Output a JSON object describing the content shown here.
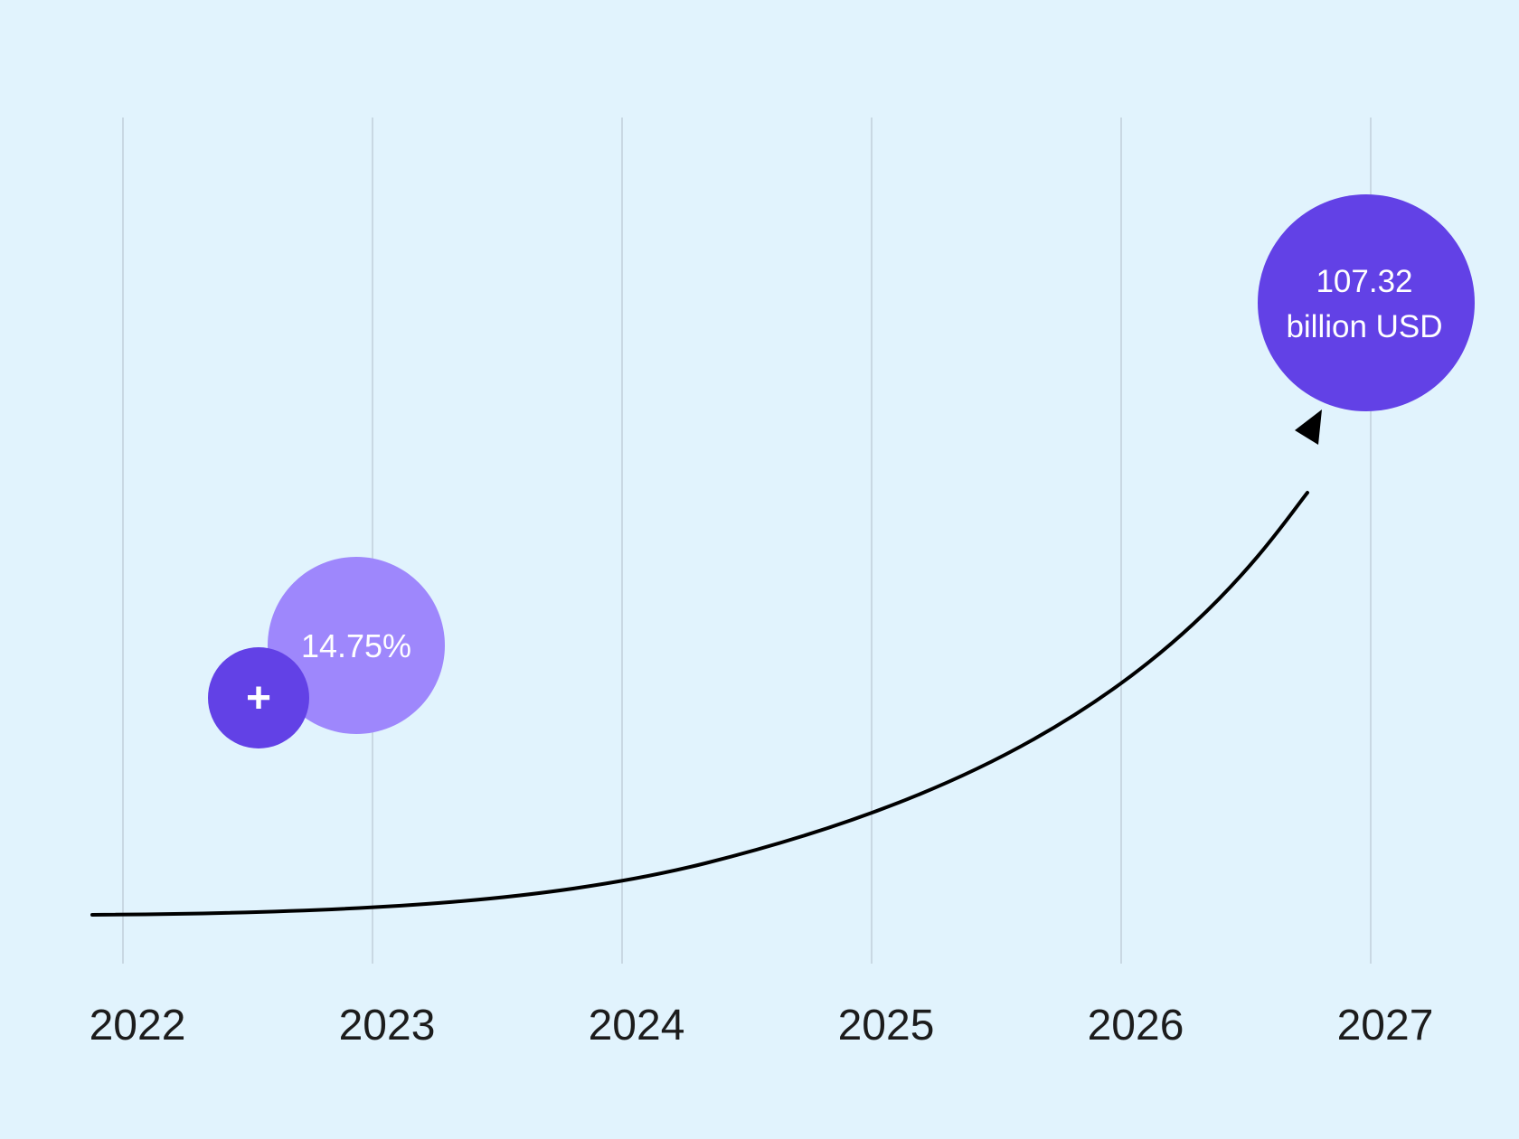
{
  "colors": {
    "background": "#e1f3fd",
    "gridline": "#c9d8e3",
    "curve": "#000000",
    "accent_dark": "#6241e6",
    "accent_light": "#9e87fc",
    "label_text": "#1c1c1c",
    "bubble_text": "#ffffff"
  },
  "chart_data": {
    "type": "line",
    "title": "",
    "xlabel": "",
    "ylabel": "",
    "x": [
      "2022",
      "2023",
      "2024",
      "2025",
      "2026",
      "2027"
    ],
    "grid": {
      "vertical": true,
      "horizontal": false
    },
    "curve_shape": "exponential growth arrow",
    "annotations": {
      "growth_rate": {
        "value": "14.75%",
        "icon": "plus-icon",
        "icon_label": "+"
      },
      "end_value": {
        "line1": "107.32",
        "line2": "billion USD",
        "year": "2027"
      }
    }
  }
}
